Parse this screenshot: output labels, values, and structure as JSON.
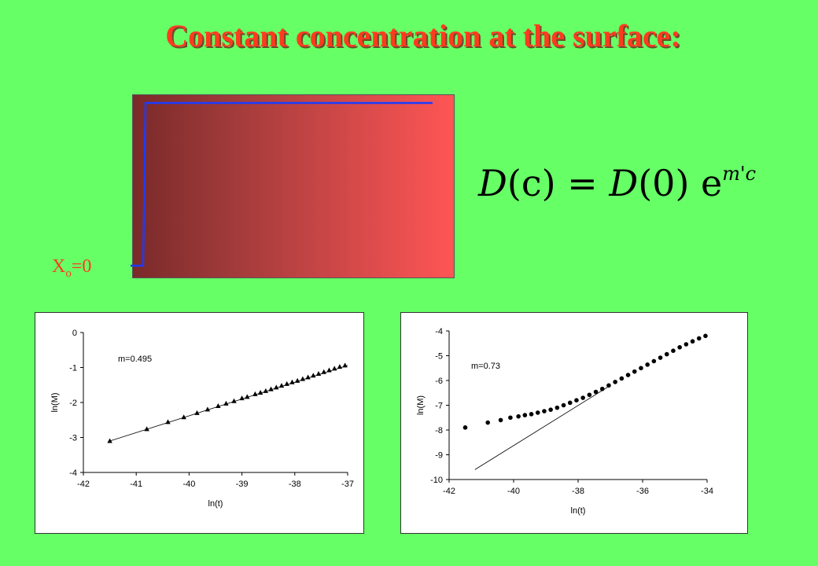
{
  "slide": {
    "title": "Constant concentration at the surface:",
    "xo_label_main": "X",
    "xo_label_sub": "o",
    "xo_label_value": "=0",
    "equation": {
      "lhs_func": "D",
      "lhs_arg": "(c)",
      "eq": " = ",
      "rhs_func": "D",
      "rhs_arg": "(0)",
      "exp_base": " e",
      "exp_power": "m'c"
    },
    "colors": {
      "background": "#66ff66",
      "title": "#ff3b1f",
      "profile_line": "#1a3cff"
    }
  },
  "chart_data": [
    {
      "type": "scatter",
      "annotation": "m=0.495",
      "xlabel": "ln(t)",
      "ylabel": "ln(M)",
      "xlim": [
        -42,
        -37
      ],
      "ylim": [
        -4,
        0
      ],
      "xticks": [
        -42,
        -41,
        -40,
        -39,
        -38,
        -37
      ],
      "yticks": [
        0,
        -1,
        -2,
        -3,
        -4
      ],
      "marker": "triangle",
      "series": [
        {
          "x": [
            -41.5,
            -40.8,
            -40.4,
            -40.1,
            -39.85,
            -39.65,
            -39.45,
            -39.3,
            -39.15,
            -39.0,
            -38.9,
            -38.75,
            -38.65,
            -38.55,
            -38.45,
            -38.35,
            -38.25,
            -38.15,
            -38.05,
            -37.95,
            -37.85,
            -37.75,
            -37.65,
            -37.55,
            -37.45,
            -37.35,
            -37.25,
            -37.15,
            -37.05
          ],
          "y": [
            -3.1,
            -2.76,
            -2.56,
            -2.42,
            -2.3,
            -2.2,
            -2.1,
            -2.03,
            -1.96,
            -1.88,
            -1.84,
            -1.76,
            -1.72,
            -1.67,
            -1.62,
            -1.57,
            -1.52,
            -1.47,
            -1.42,
            -1.38,
            -1.33,
            -1.28,
            -1.23,
            -1.18,
            -1.13,
            -1.08,
            -1.03,
            -0.98,
            -0.94
          ]
        }
      ],
      "fit_line": {
        "x": [
          -41.5,
          -37.0
        ],
        "y": [
          -3.1,
          -0.94
        ]
      }
    },
    {
      "type": "scatter",
      "annotation": "m=0.73",
      "xlabel": "ln(t)",
      "ylabel": "ln(M)",
      "xlim": [
        -42,
        -34
      ],
      "ylim": [
        -10,
        -4
      ],
      "xticks": [
        -42,
        -40,
        -38,
        -36,
        -34
      ],
      "yticks": [
        -4,
        -5,
        -6,
        -7,
        -8,
        -9,
        -10
      ],
      "marker": "circle",
      "series": [
        {
          "x": [
            -41.5,
            -40.8,
            -40.4,
            -40.1,
            -39.85,
            -39.65,
            -39.45,
            -39.25,
            -39.05,
            -38.85,
            -38.65,
            -38.45,
            -38.25,
            -38.05,
            -37.85,
            -37.65,
            -37.45,
            -37.25,
            -37.05,
            -36.85,
            -36.65,
            -36.45,
            -36.25,
            -36.05,
            -35.85,
            -35.65,
            -35.45,
            -35.25,
            -35.05,
            -34.85,
            -34.65,
            -34.45,
            -34.25,
            -34.05
          ],
          "y": [
            -7.9,
            -7.7,
            -7.6,
            -7.5,
            -7.45,
            -7.4,
            -7.36,
            -7.3,
            -7.24,
            -7.18,
            -7.1,
            -7.0,
            -6.9,
            -6.8,
            -6.7,
            -6.58,
            -6.46,
            -6.34,
            -6.2,
            -6.06,
            -5.92,
            -5.78,
            -5.64,
            -5.5,
            -5.36,
            -5.22,
            -5.08,
            -4.94,
            -4.8,
            -4.66,
            -4.54,
            -4.42,
            -4.3,
            -4.2
          ]
        }
      ],
      "fit_line": {
        "x": [
          -41.2,
          -37.0
        ],
        "y": [
          -9.6,
          -6.2
        ]
      }
    }
  ]
}
